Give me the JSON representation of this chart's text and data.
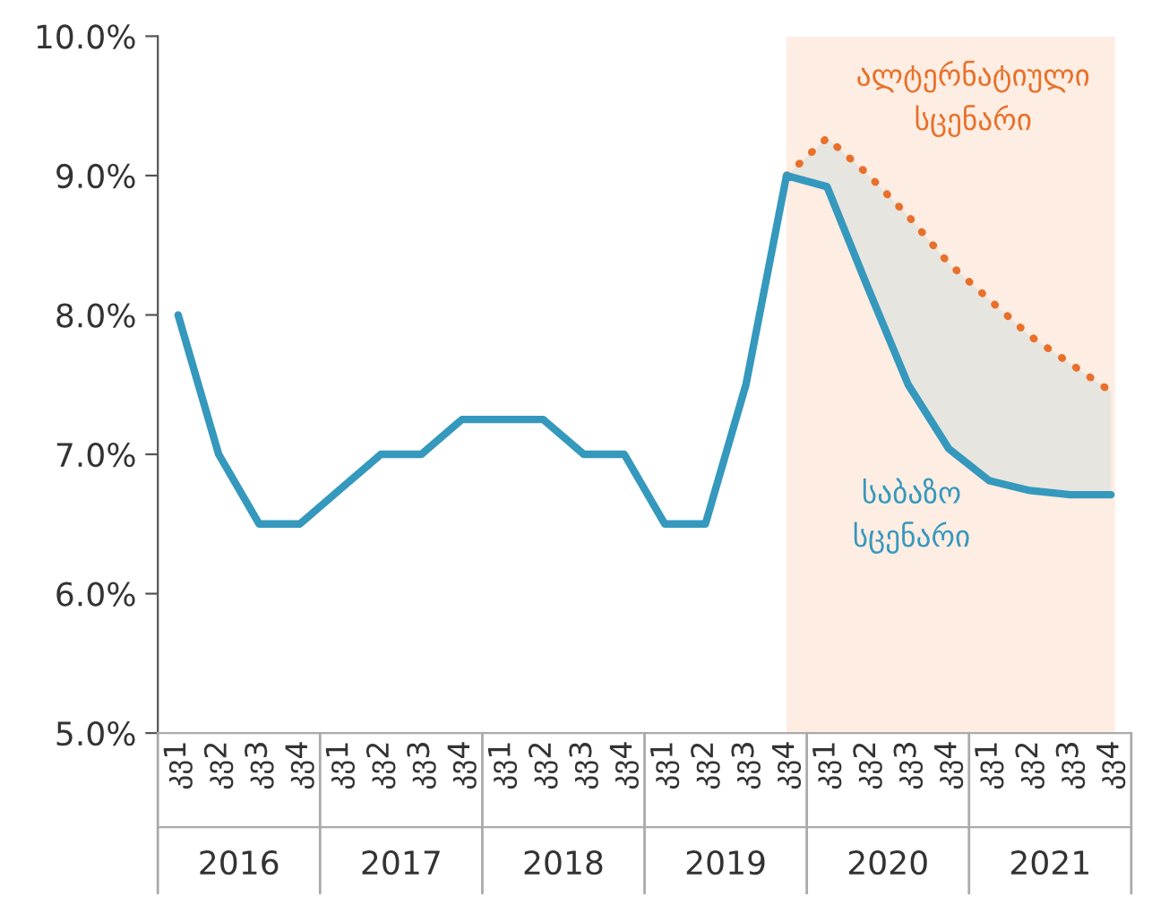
{
  "chart_data": {
    "type": "line",
    "categories": [
      "კვ1",
      "კვ2",
      "კვ3",
      "კვ4",
      "კვ1",
      "კვ2",
      "კვ3",
      "კვ4",
      "კვ1",
      "კვ2",
      "კვ3",
      "კვ4",
      "კვ1",
      "კვ2",
      "კვ3",
      "კვ4",
      "კვ1",
      "კვ2",
      "კვ3",
      "კვ4",
      "კვ1",
      "კვ2",
      "კვ3",
      "კვ4"
    ],
    "series": [
      {
        "name": "საბაზო სცენარი",
        "color": "#3598bd",
        "values": [
          8.0,
          7.0,
          6.5,
          6.5,
          6.75,
          7.0,
          7.0,
          7.25,
          7.25,
          7.25,
          7.0,
          7.0,
          6.5,
          6.5,
          7.5,
          9.0,
          8.92,
          8.2,
          7.5,
          7.04,
          6.81,
          6.74,
          6.71,
          6.71
        ]
      },
      {
        "name": "ალტერნატიული სცენარი",
        "color": "#e8702a",
        "line_style": "dotted",
        "values": [
          null,
          null,
          null,
          null,
          null,
          null,
          null,
          null,
          null,
          null,
          null,
          null,
          null,
          null,
          null,
          9.0,
          9.27,
          9.01,
          8.71,
          8.37,
          8.11,
          7.85,
          7.65,
          7.45
        ],
        "lower": [
          null,
          null,
          null,
          null,
          null,
          null,
          null,
          null,
          null,
          null,
          null,
          null,
          null,
          null,
          null,
          9.0,
          8.92,
          8.2,
          7.5,
          7.04,
          6.81,
          6.74,
          6.71,
          6.71
        ],
        "upper": [
          null,
          null,
          null,
          null,
          null,
          null,
          null,
          null,
          null,
          null,
          null,
          null,
          null,
          null,
          null,
          9.0,
          9.27,
          9.01,
          8.71,
          8.37,
          8.11,
          7.85,
          7.65,
          7.45
        ]
      }
    ],
    "ylim": [
      5.0,
      10.0
    ],
    "yticks": [
      {
        "value": 5.0,
        "label": "5.0%"
      },
      {
        "value": 6.0,
        "label": "6.0%"
      },
      {
        "value": 7.0,
        "label": "7.0%"
      },
      {
        "value": 8.0,
        "label": "8.0%"
      },
      {
        "value": 9.0,
        "label": "9.0%"
      },
      {
        "value": 10.0,
        "label": "10.0%"
      }
    ],
    "annotations": [
      "2016",
      "2017",
      "2018",
      "2019",
      "2020",
      "2021"
    ],
    "grid": false,
    "legend": false
  }
}
